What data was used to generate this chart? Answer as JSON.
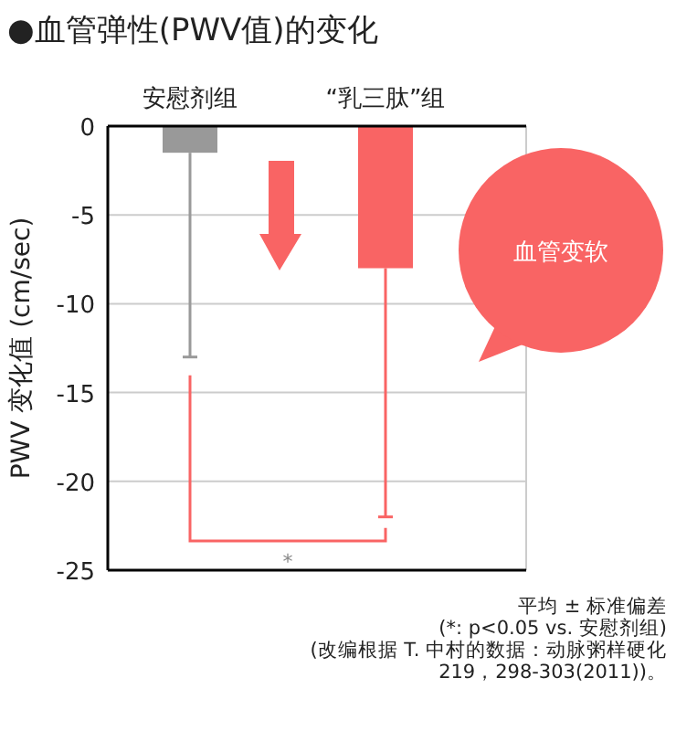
{
  "chart_data": {
    "type": "bar",
    "title": "●血管弹性(PWV值)的变化",
    "categories": [
      "安慰剂组",
      "“乳三肽”组"
    ],
    "ylabel": "PWV 变化值 (cm/sec)",
    "colors": [
      "#999999",
      "#f96464"
    ],
    "values": [
      -1.5,
      -8
    ],
    "errors": [
      [
        -13,
        -1.5
      ],
      [
        -22,
        -8
      ]
    ],
    "ylim": [
      -25,
      0
    ],
    "yticks": [
      0,
      -5,
      -10,
      -15,
      -20,
      -25
    ],
    "grid": "y",
    "annotations": [
      "血管变软",
      "*",
      "平均 ± 标准偏差",
      "(*: p<0.05 vs. 安慰剂组)",
      "(改编根据 T. 中村的数据：动脉粥样硬化 219，298-303(2011))。"
    ]
  }
}
